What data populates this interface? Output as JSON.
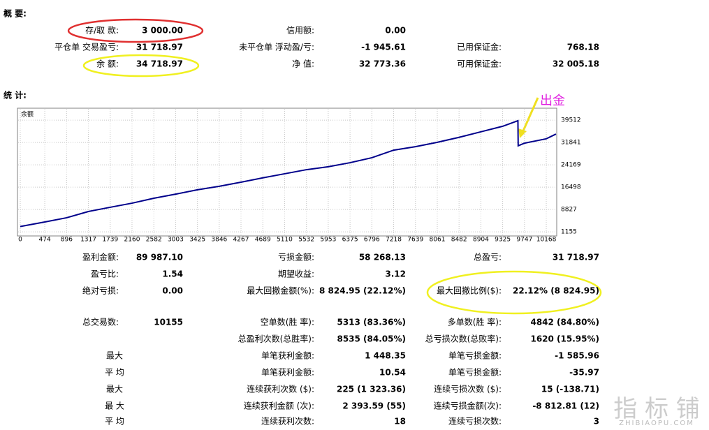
{
  "summary": {
    "title": "概 要:",
    "rows": [
      {
        "c1": [
          "存/取 款:",
          "3 000.00"
        ],
        "c2": [
          "信用额:",
          "0.00"
        ]
      },
      {
        "c1": [
          "平仓单 交易盈亏:",
          "31 718.97"
        ],
        "c2": [
          "未平仓单 浮动盈/亏:",
          "-1 945.61"
        ],
        "c3": [
          "已用保证金:",
          "768.18"
        ]
      },
      {
        "c1": [
          "余 额:",
          "34 718.97"
        ],
        "c2": [
          "净 值:",
          "32 773.36"
        ],
        "c3": [
          "可用保证金:",
          "32 005.18"
        ]
      }
    ]
  },
  "stats": {
    "title": "统 计:",
    "rows": [
      {
        "c1": [
          "盈利金额:",
          "89 987.10"
        ],
        "c2": [
          "亏损金额:",
          "58 268.13"
        ],
        "c3": [
          "总盈亏:",
          "31 718.97"
        ]
      },
      {
        "c1": [
          "盈亏比:",
          "1.54"
        ],
        "c2": [
          "期望收益:",
          "3.12"
        ]
      },
      {
        "c1": [
          "绝对亏损:",
          "0.00"
        ],
        "c2": [
          "最大回撤金额(%):",
          "8 824.95 (22.12%)"
        ],
        "c3": [
          "最大回撤比例($):",
          "22.12% (8 824.95)"
        ]
      },
      {
        "c1": [
          "总交易数:",
          "10155"
        ],
        "c2": [
          "空单数(胜 率):",
          "5313 (83.36%)"
        ],
        "c3": [
          "多单数(胜 率):",
          "4842 (84.80%)"
        ]
      },
      {
        "c2": [
          "总盈利次数(总胜率):",
          "8535 (84.05%)"
        ],
        "c3": [
          "总亏损次数(总败率):",
          "1620 (15.95%)"
        ]
      },
      {
        "c1": [
          "最大"
        ],
        "c2": [
          "单笔获利金额:",
          "1 448.35"
        ],
        "c3": [
          "单笔亏损金额:",
          "-1 585.96"
        ]
      },
      {
        "c1": [
          "平 均"
        ],
        "c2": [
          "单笔获利金额:",
          "10.54"
        ],
        "c3": [
          "单笔亏损金额:",
          "-35.97"
        ]
      },
      {
        "c1": [
          "最大"
        ],
        "c2": [
          "连续获利次数 ($):",
          "225 (1 323.36)"
        ],
        "c3": [
          "连续亏损次数 ($):",
          "15 (-138.71)"
        ]
      },
      {
        "c1": [
          "最 大"
        ],
        "c2": [
          "连续获利金额 (次):",
          "2 393.59 (55)"
        ],
        "c3": [
          "连续亏损金额(次):",
          "-8 812.81 (12)"
        ]
      },
      {
        "c1": [
          "平 均"
        ],
        "c2": [
          "连续获利次数:",
          "18"
        ],
        "c3": [
          "连续亏损次数:",
          "3"
        ]
      }
    ]
  },
  "chart_data": {
    "type": "line",
    "title": "余额",
    "annotation": "出金",
    "x": [
      0,
      474,
      896,
      1317,
      1739,
      2160,
      2582,
      3003,
      3425,
      3846,
      4267,
      4689,
      5110,
      5532,
      5953,
      6375,
      6796,
      7218,
      7639,
      8061,
      8482,
      8904,
      9325,
      9620,
      9625,
      9747,
      10168,
      10355
    ],
    "series": [
      {
        "name": "余额",
        "color": "#00008b",
        "values": [
          3000,
          4550,
          6000,
          8150,
          9600,
          11000,
          12700,
          14100,
          15600,
          16800,
          18200,
          19700,
          21100,
          22500,
          23500,
          24900,
          26600,
          29200,
          30400,
          31900,
          33600,
          35500,
          37400,
          39300,
          30700,
          31600,
          33100,
          34719
        ]
      }
    ],
    "xlim": [
      0,
      10370
    ],
    "xticks": [
      0,
      474,
      896,
      1317,
      1739,
      2160,
      2582,
      3003,
      3425,
      3846,
      4267,
      4689,
      5110,
      5532,
      5953,
      6375,
      6796,
      7218,
      7639,
      8061,
      8482,
      8904,
      9325,
      9747,
      10168
    ],
    "ylim": [
      0,
      43600
    ],
    "yticks": [
      1155,
      8827,
      16498,
      24169,
      31841,
      39512
    ],
    "grid": true
  },
  "watermark": {
    "main": "指 标 铺",
    "sub": "ZHIBIAOPU.COM"
  }
}
